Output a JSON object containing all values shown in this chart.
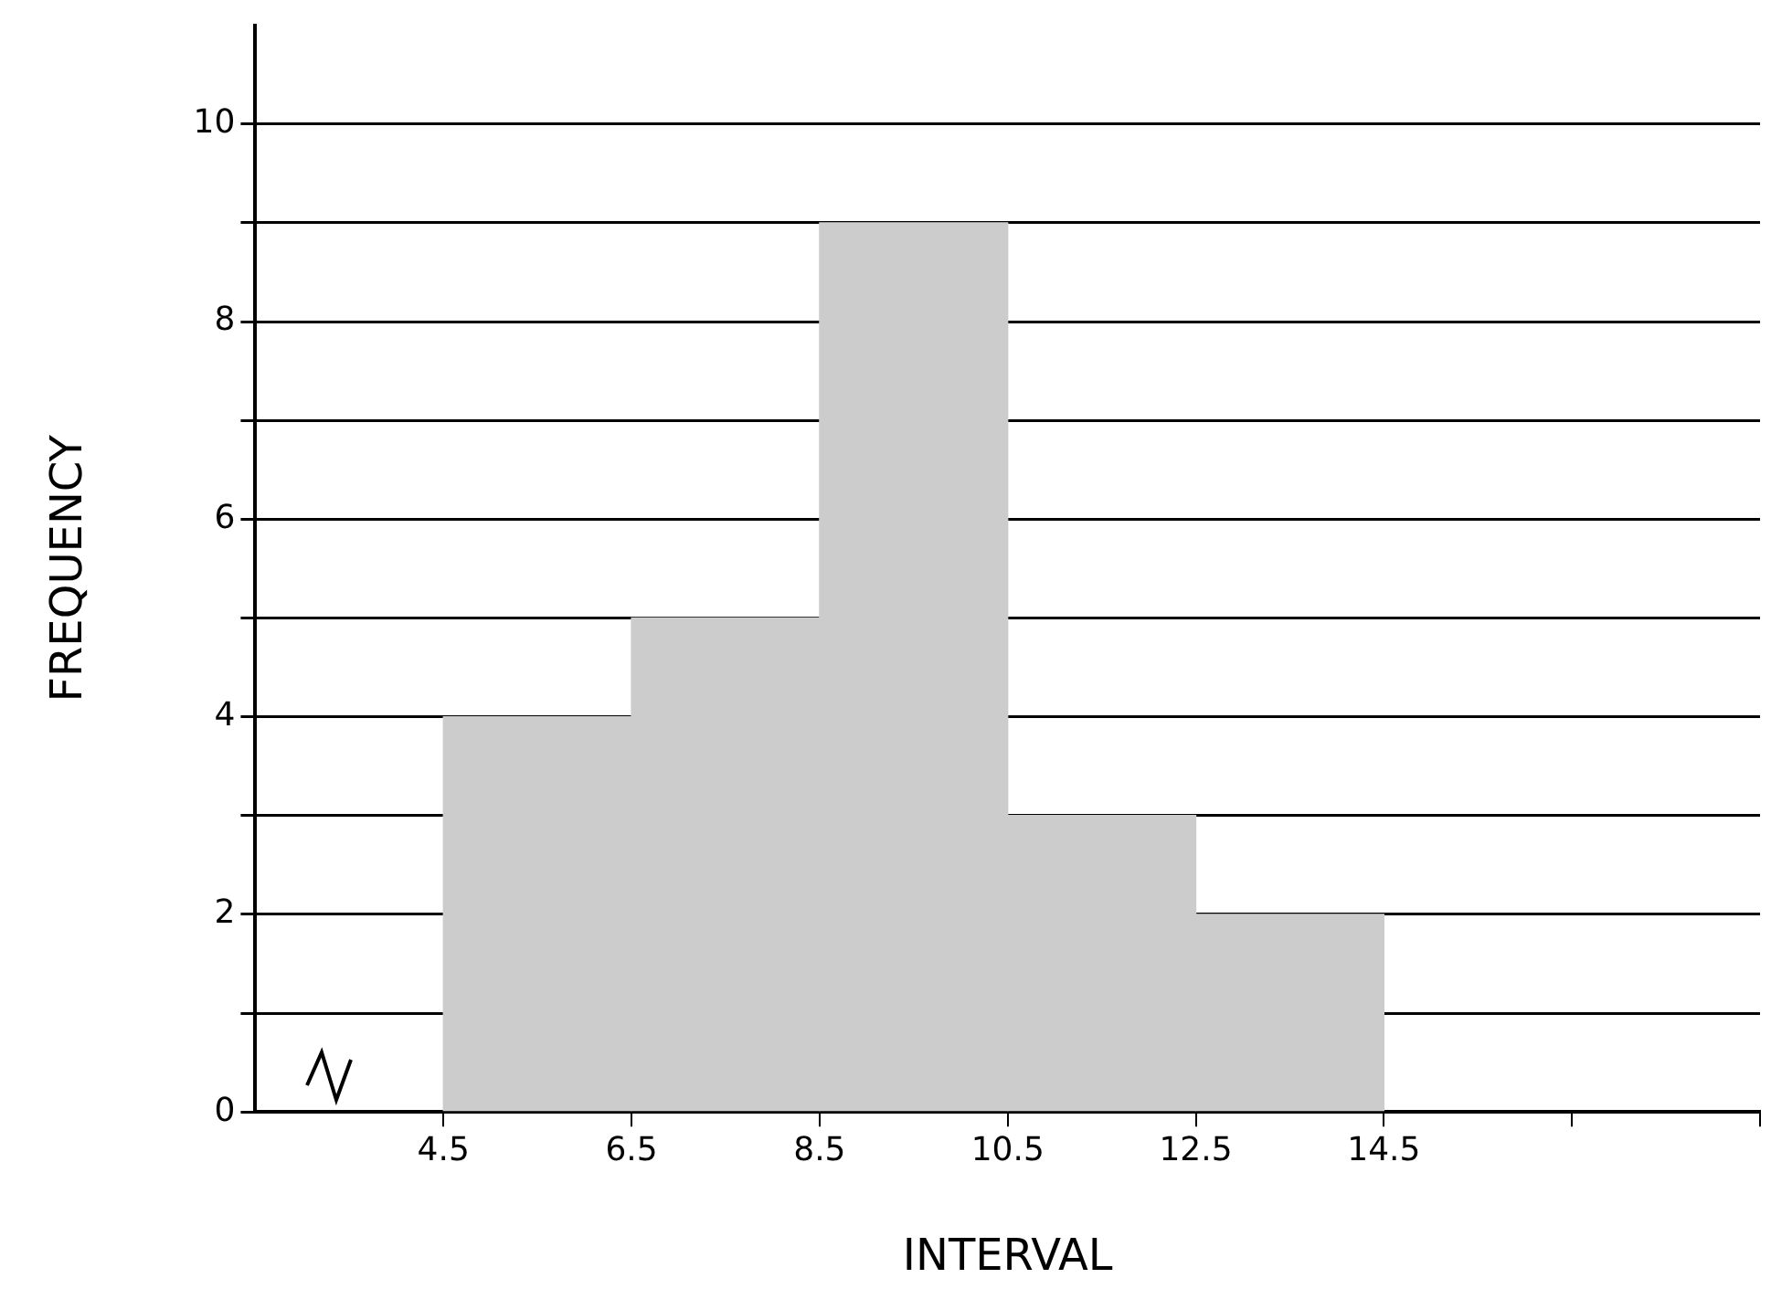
{
  "chart_data": {
    "type": "histogram",
    "xlabel": "INTERVAL",
    "ylabel": "FREQUENCY",
    "bins": [
      4.5,
      6.5,
      8.5,
      10.5,
      12.5,
      14.5
    ],
    "values": [
      4,
      5,
      9,
      3,
      2
    ],
    "color": "#cccccc",
    "xlim": [
      2.5,
      18.5
    ],
    "ylim": [
      0,
      11
    ],
    "xticks": [
      4.5,
      6.5,
      8.5,
      10.5,
      12.5,
      14.5,
      {
        "value": 16.5,
        "label": null
      },
      {
        "value": 18.5,
        "label": null
      }
    ],
    "yticks": [
      0,
      {
        "value": 1,
        "label": null
      },
      2,
      {
        "value": 3,
        "label": null
      },
      4,
      {
        "value": 5,
        "label": null
      },
      6,
      {
        "value": 7,
        "label": null
      },
      8,
      {
        "value": 9,
        "label": null
      },
      10
    ],
    "grid": "y"
  }
}
